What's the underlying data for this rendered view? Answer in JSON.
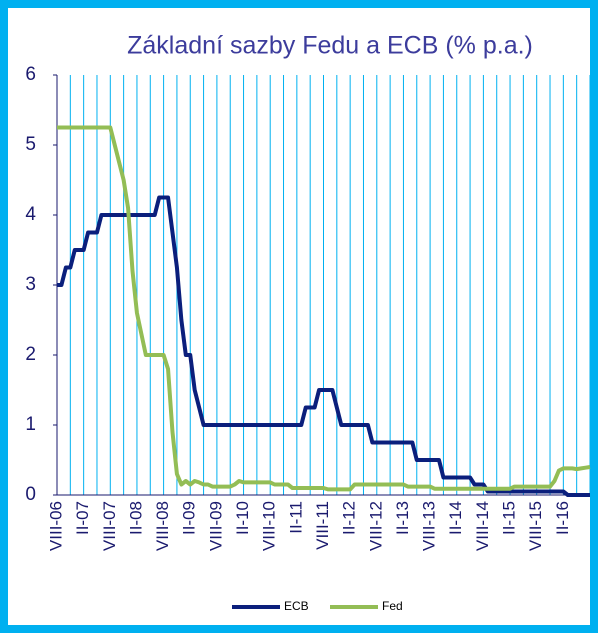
{
  "chart_data": {
    "type": "line",
    "title": "Základní sazby Fedu a ECB (% p.a.)",
    "categories": [
      "VIII-06",
      null,
      null,
      null,
      null,
      null,
      "II-07",
      null,
      null,
      null,
      null,
      null,
      "VIII-07",
      null,
      null,
      null,
      null,
      null,
      "II-08",
      null,
      null,
      null,
      null,
      null,
      "VIII-08",
      null,
      null,
      null,
      null,
      null,
      "II-09",
      null,
      null,
      null,
      null,
      null,
      "VIII-09",
      null,
      null,
      null,
      null,
      null,
      "II-10",
      null,
      null,
      null,
      null,
      null,
      "VIII-10",
      null,
      null,
      null,
      null,
      null,
      "II-11",
      null,
      null,
      null,
      null,
      null,
      "VIII-11",
      null,
      null,
      null,
      null,
      null,
      "II-12",
      null,
      null,
      null,
      null,
      null,
      "VIII-12",
      null,
      null,
      null,
      null,
      null,
      "II-13",
      null,
      null,
      null,
      null,
      null,
      "VIII-13",
      null,
      null,
      null,
      null,
      null,
      "II-14",
      null,
      null,
      null,
      null,
      null,
      "VIII-14",
      null,
      null,
      null,
      null,
      null,
      "II-15",
      null,
      null,
      null,
      null,
      null,
      "VIII-15",
      null,
      null,
      null,
      null,
      null,
      "II-16",
      null,
      null,
      null,
      null,
      null,
      null
    ],
    "series": [
      {
        "name": "ECB",
        "color": "#0b1f7c",
        "values": [
          3.0,
          3.0,
          3.25,
          3.25,
          3.5,
          3.5,
          3.5,
          3.75,
          3.75,
          3.75,
          4.0,
          4.0,
          4.0,
          4.0,
          4.0,
          4.0,
          4.0,
          4.0,
          4.0,
          4.0,
          4.0,
          4.0,
          4.0,
          4.25,
          4.25,
          4.25,
          3.75,
          3.25,
          2.5,
          2.0,
          2.0,
          1.5,
          1.25,
          1.0,
          1.0,
          1.0,
          1.0,
          1.0,
          1.0,
          1.0,
          1.0,
          1.0,
          1.0,
          1.0,
          1.0,
          1.0,
          1.0,
          1.0,
          1.0,
          1.0,
          1.0,
          1.0,
          1.0,
          1.0,
          1.0,
          1.0,
          1.25,
          1.25,
          1.25,
          1.5,
          1.5,
          1.5,
          1.5,
          1.25,
          1.0,
          1.0,
          1.0,
          1.0,
          1.0,
          1.0,
          1.0,
          0.75,
          0.75,
          0.75,
          0.75,
          0.75,
          0.75,
          0.75,
          0.75,
          0.75,
          0.75,
          0.5,
          0.5,
          0.5,
          0.5,
          0.5,
          0.5,
          0.25,
          0.25,
          0.25,
          0.25,
          0.25,
          0.25,
          0.25,
          0.15,
          0.15,
          0.15,
          0.05,
          0.05,
          0.05,
          0.05,
          0.05,
          0.05,
          0.05,
          0.05,
          0.05,
          0.05,
          0.05,
          0.05,
          0.05,
          0.05,
          0.05,
          0.05,
          0.05,
          0.05,
          0,
          0,
          0,
          0,
          0,
          0
        ]
      },
      {
        "name": "Fed",
        "color": "#93bd55",
        "values": [
          5.25,
          5.25,
          5.25,
          5.25,
          5.25,
          5.25,
          5.25,
          5.25,
          5.25,
          5.25,
          5.25,
          5.25,
          5.25,
          5.0,
          4.75,
          4.5,
          4.1,
          3.2,
          2.6,
          2.3,
          2.0,
          2.0,
          2.0,
          2.0,
          2.0,
          1.8,
          0.9,
          0.3,
          0.15,
          0.2,
          0.15,
          0.2,
          0.18,
          0.15,
          0.15,
          0.12,
          0.12,
          0.12,
          0.12,
          0.12,
          0.15,
          0.2,
          0.18,
          0.18,
          0.18,
          0.18,
          0.18,
          0.18,
          0.18,
          0.15,
          0.15,
          0.15,
          0.15,
          0.1,
          0.1,
          0.1,
          0.1,
          0.1,
          0.1,
          0.1,
          0.1,
          0.08,
          0.08,
          0.08,
          0.08,
          0.08,
          0.08,
          0.15,
          0.15,
          0.15,
          0.15,
          0.15,
          0.15,
          0.15,
          0.15,
          0.15,
          0.15,
          0.15,
          0.15,
          0.12,
          0.12,
          0.12,
          0.12,
          0.12,
          0.12,
          0.09,
          0.09,
          0.09,
          0.09,
          0.09,
          0.09,
          0.09,
          0.09,
          0.09,
          0.09,
          0.09,
          0.09,
          0.09,
          0.09,
          0.09,
          0.09,
          0.09,
          0.09,
          0.12,
          0.12,
          0.12,
          0.12,
          0.12,
          0.12,
          0.12,
          0.12,
          0.12,
          0.2,
          0.35,
          0.38,
          0.38,
          0.38,
          0.37,
          0.38,
          0.39,
          0.4
        ]
      }
    ],
    "ylim": [
      0,
      6
    ],
    "yticks": [
      0,
      1,
      2,
      3,
      4,
      5,
      6
    ],
    "grid": true,
    "legend": "bottom"
  }
}
